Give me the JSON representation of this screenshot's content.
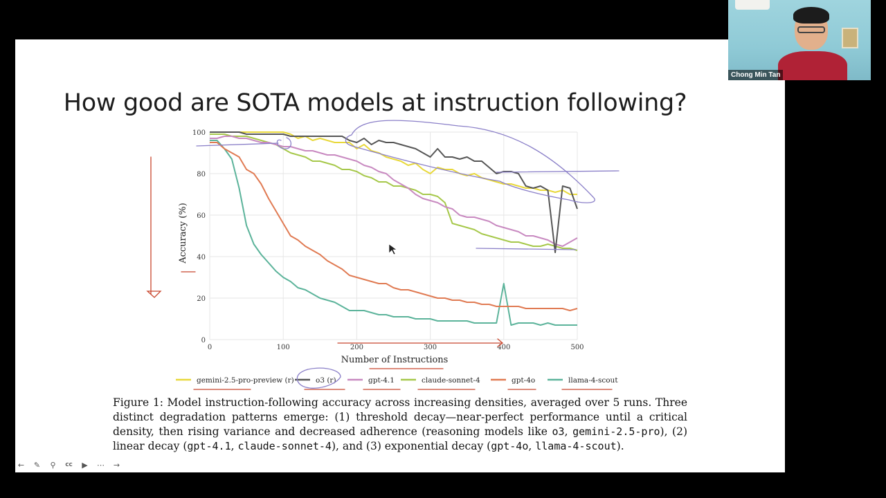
{
  "slide": {
    "title": "How good are SOTA models at instruction following?"
  },
  "chart_data": {
    "type": "line",
    "xlabel": "Number of Instructions",
    "ylabel": "Accuracy (%)",
    "xlim": [
      0,
      500
    ],
    "ylim": [
      0,
      100
    ],
    "xticks": [
      "0",
      "100",
      "200",
      "300",
      "400",
      "500"
    ],
    "yticks": [
      "0",
      "20",
      "40",
      "60",
      "80",
      "100"
    ],
    "grid": true,
    "legend_position": "bottom",
    "x": [
      10,
      20,
      30,
      40,
      50,
      60,
      70,
      80,
      90,
      100,
      110,
      120,
      130,
      140,
      150,
      160,
      170,
      180,
      190,
      200,
      210,
      220,
      230,
      240,
      250,
      260,
      270,
      280,
      290,
      300,
      310,
      320,
      330,
      340,
      350,
      360,
      370,
      380,
      390,
      400,
      410,
      420,
      430,
      440,
      450,
      460,
      470,
      480,
      490,
      500
    ],
    "series": [
      {
        "name": "gemini-2.5-pro-preview (r)",
        "color": "#e8d83a",
        "values": [
          100,
          100,
          100,
          100,
          100,
          100,
          100,
          100,
          100,
          100,
          99,
          97,
          98,
          96,
          97,
          96,
          95,
          95,
          95,
          92,
          94,
          91,
          90,
          88,
          87,
          86,
          84,
          85,
          82,
          80,
          83,
          82,
          82,
          80,
          79,
          80,
          78,
          77,
          76,
          75,
          75,
          74,
          73,
          73,
          72,
          72,
          71,
          72,
          70,
          70
        ]
      },
      {
        "name": "o3 (r)",
        "color": "#555555",
        "values": [
          100,
          100,
          100,
          100,
          99,
          99,
          99,
          99,
          99,
          99,
          98,
          98,
          98,
          98,
          98,
          98,
          98,
          98,
          96,
          95,
          97,
          94,
          96,
          95,
          95,
          94,
          93,
          92,
          90,
          88,
          92,
          88,
          88,
          87,
          88,
          86,
          86,
          83,
          80,
          81,
          81,
          80,
          74,
          73,
          74,
          72,
          42,
          74,
          73,
          63
        ]
      },
      {
        "name": "gpt-4.1",
        "color": "#c889c0",
        "values": [
          97,
          98,
          98,
          97,
          97,
          96,
          95,
          95,
          94,
          93,
          93,
          92,
          91,
          91,
          90,
          89,
          89,
          88,
          87,
          86,
          84,
          83,
          81,
          80,
          77,
          75,
          73,
          70,
          68,
          67,
          66,
          64,
          63,
          60,
          59,
          59,
          58,
          57,
          55,
          54,
          53,
          52,
          50,
          50,
          49,
          48,
          46,
          45,
          47,
          49
        ]
      },
      {
        "name": "claude-sonnet-4",
        "color": "#a6c84a",
        "values": [
          99,
          99,
          98,
          98,
          98,
          97,
          96,
          95,
          94,
          92,
          90,
          89,
          88,
          86,
          86,
          85,
          84,
          82,
          82,
          81,
          79,
          78,
          76,
          76,
          74,
          74,
          73,
          72,
          70,
          70,
          69,
          66,
          56,
          55,
          54,
          53,
          51,
          50,
          49,
          48,
          47,
          47,
          46,
          45,
          45,
          46,
          45,
          44,
          44,
          43
        ]
      },
      {
        "name": "gpt-4o",
        "color": "#e07a52",
        "values": [
          95,
          92,
          90,
          88,
          82,
          80,
          75,
          68,
          62,
          56,
          50,
          48,
          45,
          43,
          41,
          38,
          36,
          34,
          31,
          30,
          29,
          28,
          27,
          27,
          25,
          24,
          24,
          23,
          22,
          21,
          20,
          20,
          19,
          19,
          18,
          18,
          17,
          17,
          16,
          16,
          16,
          16,
          15,
          15,
          15,
          15,
          15,
          15,
          14,
          15
        ]
      },
      {
        "name": "llama-4-scout",
        "color": "#5bb39a",
        "values": [
          96,
          92,
          87,
          73,
          55,
          46,
          41,
          37,
          33,
          30,
          28,
          25,
          24,
          22,
          20,
          19,
          18,
          16,
          14,
          14,
          14,
          13,
          12,
          12,
          11,
          11,
          11,
          10,
          10,
          10,
          9,
          9,
          9,
          9,
          9,
          8,
          8,
          8,
          8,
          27,
          7,
          8,
          8,
          8,
          7,
          8,
          7,
          7,
          7,
          7
        ]
      }
    ]
  },
  "caption": {
    "p1": "Figure 1: Model instruction-following accuracy across increasing densities, averaged over 5 runs. Three distinct degradation patterns emerge: (1) threshold decay—near-perfect performance until a critical density, then rising variance and decreased adherence (reasoning models like ",
    "c1": "o3",
    "p2": ", ",
    "c2": "gemini-2.5-pro",
    "p3": "), (2) linear decay (",
    "c3": "gpt-4.1",
    "p4": ", ",
    "c4": "claude-sonnet-4",
    "p5": "), and (3) exponential decay (",
    "c5": "gpt-4o",
    "p6": ", ",
    "c6": "llama-4-scout",
    "p7": ")."
  },
  "participant": {
    "name": "Chong Min Tan"
  },
  "toolbar": {
    "icons": [
      "back-icon",
      "pen-icon",
      "zoom-icon",
      "captions-icon",
      "video-icon",
      "more-icon",
      "forward-icon"
    ]
  },
  "annotations": {
    "ink_red": "#c8452c",
    "ink_purple": "#8a7fc8"
  }
}
